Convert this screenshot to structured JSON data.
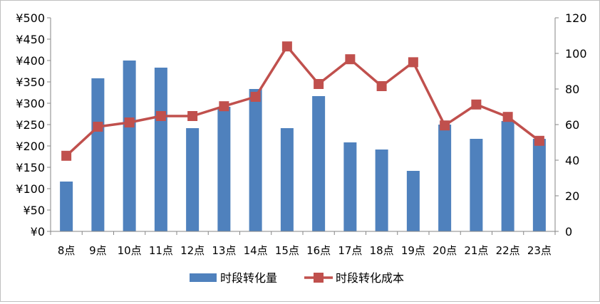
{
  "chart_data": {
    "type": "bar+line",
    "title": "",
    "categories": [
      "8点",
      "9点",
      "10点",
      "11点",
      "12点",
      "13点",
      "14点",
      "15点",
      "16点",
      "17点",
      "18点",
      "19点",
      "20点",
      "21点",
      "22点",
      "23点"
    ],
    "series": [
      {
        "name": "时段转化量",
        "type": "bar",
        "axis": "right",
        "color": "#4f81bd",
        "values": [
          28,
          86,
          96,
          92,
          58,
          70,
          80,
          58,
          76,
          50,
          46,
          34,
          60,
          52,
          62,
          52
        ]
      },
      {
        "name": "时段转化成本",
        "type": "line",
        "axis": "left",
        "color": "#c0504d",
        "marker": "square",
        "values": [
          177,
          245,
          255,
          270,
          270,
          293,
          315,
          433,
          345,
          403,
          340,
          396,
          248,
          297,
          268,
          212
        ]
      }
    ],
    "y_left": {
      "min": 0,
      "max": 500,
      "step": 50,
      "ticks": [
        "¥0",
        "¥50",
        "¥100",
        "¥150",
        "¥200",
        "¥250",
        "¥300",
        "¥350",
        "¥400",
        "¥450",
        "¥500"
      ]
    },
    "y_right": {
      "min": 0,
      "max": 120,
      "step": 20,
      "ticks": [
        "0",
        "20",
        "40",
        "60",
        "80",
        "100",
        "120"
      ]
    },
    "grid": false,
    "legend": "bottom"
  }
}
